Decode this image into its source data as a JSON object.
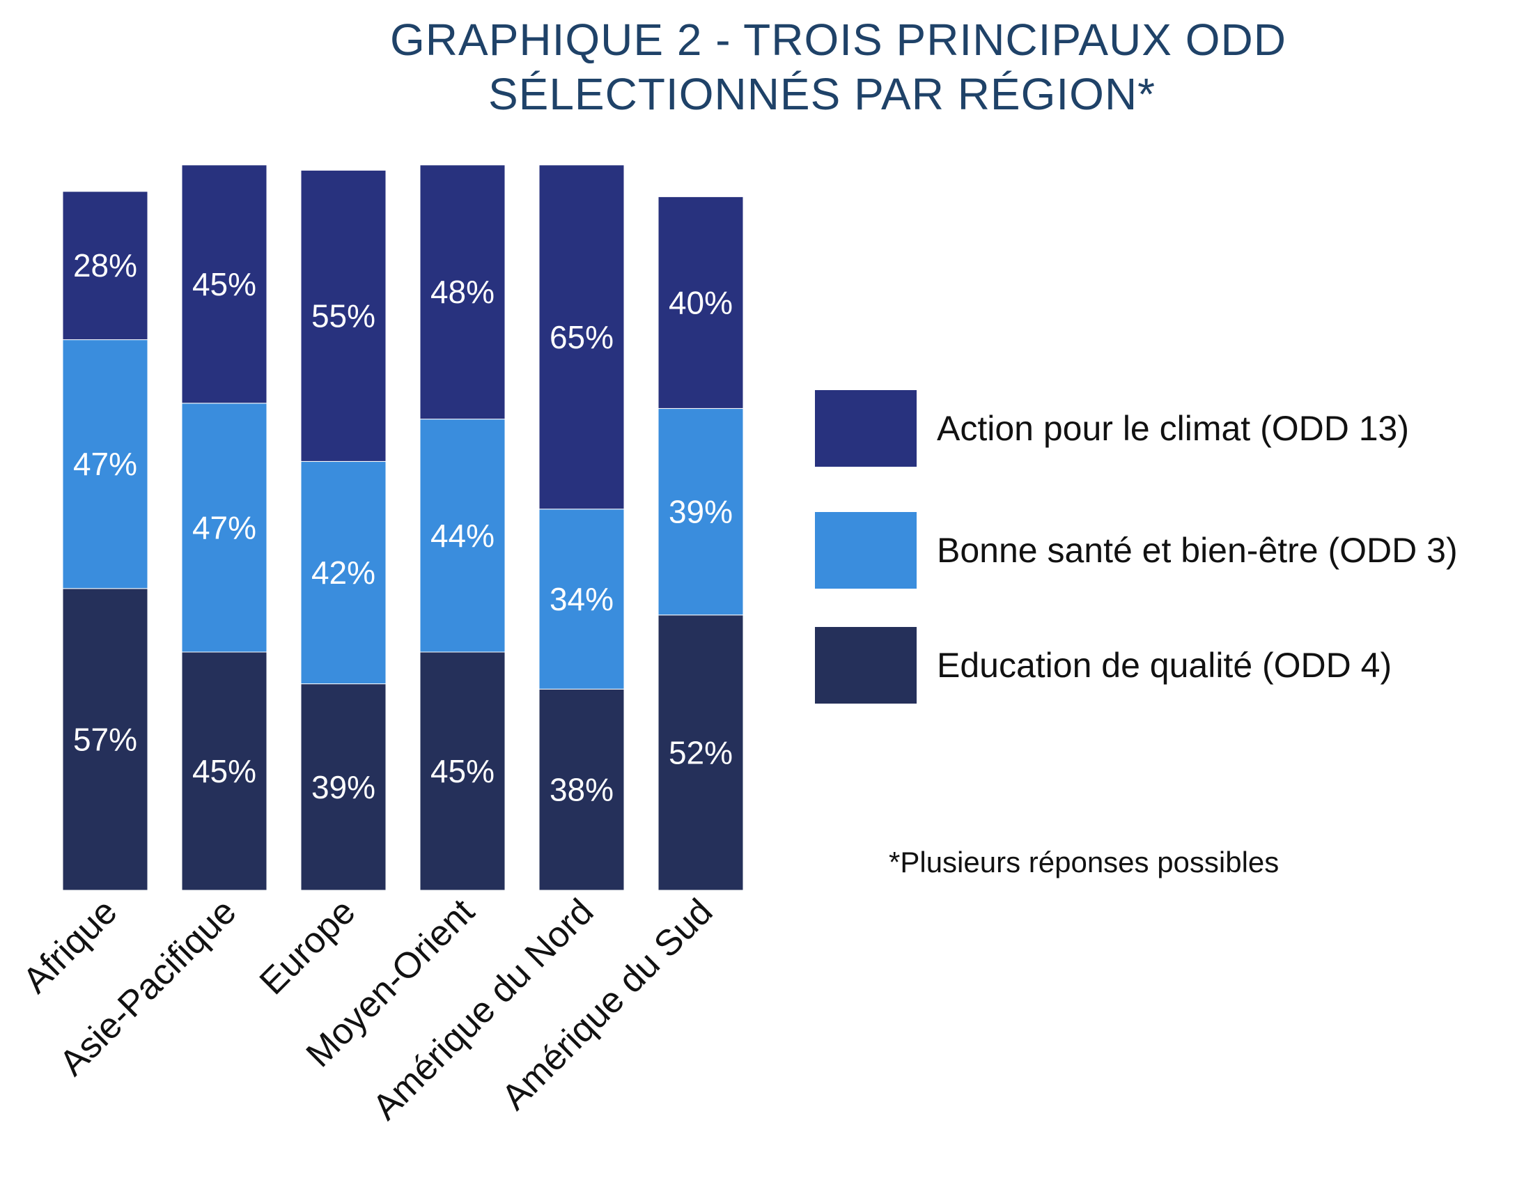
{
  "chart_data": {
    "type": "bar",
    "stacked": true,
    "title_lines": [
      "GRAPHIQUE 2 - TROIS PRINCIPAUX ODD",
      "SÉLECTIONNÉS PAR RÉGION*"
    ],
    "categories": [
      "Afrique",
      "Asie-Pacifique",
      "Europe",
      "Moyen-Orient",
      "Amérique du Nord",
      "Amérique du Sud"
    ],
    "series": [
      {
        "name": "Education de qualité (ODD 4)",
        "color": "#25305a",
        "values": [
          57,
          45,
          39,
          45,
          38,
          52
        ],
        "labels": [
          "57%",
          "45%",
          "39%",
          "45%",
          "38%",
          "52%"
        ]
      },
      {
        "name": "Bonne santé et bien-être (ODD 3)",
        "color": "#3a8ddd",
        "values": [
          47,
          47,
          42,
          44,
          34,
          39
        ],
        "labels": [
          "47%",
          "47%",
          "42%",
          "44%",
          "34%",
          "39%"
        ]
      },
      {
        "name": "Action pour le climat (ODD 13)",
        "color": "#28327e",
        "values": [
          28,
          45,
          55,
          48,
          65,
          40
        ],
        "labels": [
          "28%",
          "45%",
          "55%",
          "48%",
          "65%",
          "40%"
        ]
      }
    ],
    "legend_order": [
      "Action pour le climat (ODD 13)",
      "Bonne santé et bien-être (ODD 3)",
      "Education de qualité (ODD 4)"
    ],
    "legend_position": "right",
    "ylim": [
      0,
      140
    ],
    "grid": false,
    "x_tick_rotation": "-45deg"
  },
  "footnote": "*Plusieurs réponses possibles"
}
